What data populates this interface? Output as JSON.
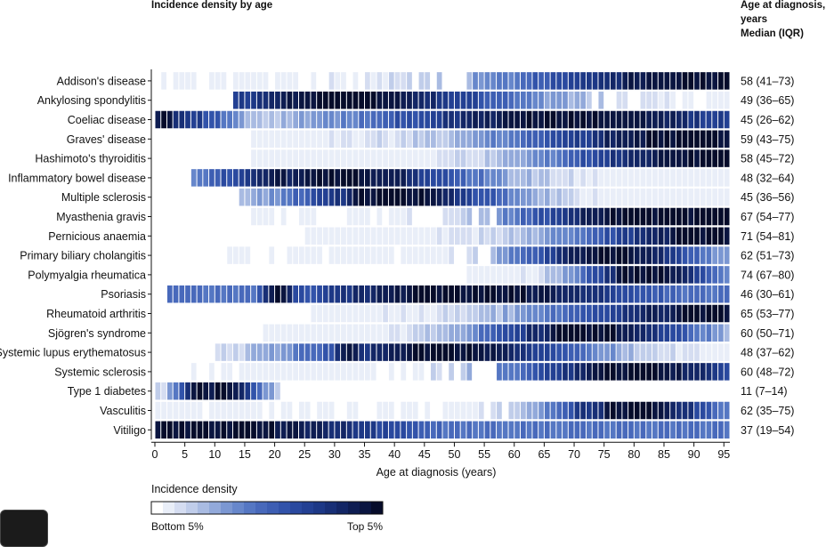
{
  "header": {
    "title": "Incidence density by age",
    "right_title_lines": [
      "Age at diagnosis,",
      "years",
      "Median (IQR)"
    ]
  },
  "legend": {
    "title": "Incidence density",
    "low_label": "Bottom 5%",
    "high_label": "Top 5%",
    "levels": 20
  },
  "colors": {
    "scale": [
      "#ffffff",
      "#e9eef8",
      "#d5ddf1",
      "#c0cdea",
      "#a9bbe2",
      "#92a9da",
      "#7b97d2",
      "#6787cb",
      "#5577c3",
      "#4869bb",
      "#3d5eb3",
      "#3253aa",
      "#2a499f",
      "#234093",
      "#1d3886",
      "#182f76",
      "#132665",
      "#0e1d52",
      "#0a1540",
      "#060c2a"
    ]
  },
  "chart_data": {
    "type": "heatmap",
    "title": "Incidence density by age",
    "xlabel": "Age at diagnosis (years)",
    "x_ticks": [
      0,
      5,
      10,
      15,
      20,
      25,
      30,
      35,
      40,
      45,
      50,
      55,
      60,
      65,
      70,
      75,
      80,
      85,
      90,
      95
    ],
    "x_range": [
      0,
      96
    ],
    "color_scale_levels": 20,
    "rows": [
      {
        "name": "Addison's disease",
        "median_iqr": "58 (41–73)",
        "shape": "rise",
        "start": 0,
        "peak": 90,
        "width": 24,
        "dark": 89,
        "dense": 0
      },
      {
        "name": "Ankylosing spondylitis",
        "median_iqr": "49 (36–65)",
        "shape": "bell",
        "start": 13,
        "peak": 32,
        "width": 22,
        "dark": 30,
        "dense": 0
      },
      {
        "name": "Coeliac disease",
        "median_iqr": "45 (26–62)",
        "shape": "bimodal",
        "start": 0,
        "peak": 70,
        "width": 28,
        "dark": 1,
        "dense": 1
      },
      {
        "name": "Graves' disease",
        "median_iqr": "59 (43–75)",
        "shape": "rise",
        "start": 16,
        "peak": 90,
        "width": 24,
        "dark": 88,
        "dense": 1
      },
      {
        "name": "Hashimoto's thyroiditis",
        "median_iqr": "58 (45–72)",
        "shape": "rise",
        "start": 16,
        "peak": 92,
        "width": 20,
        "dark": 89,
        "dense": 1
      },
      {
        "name": "Inflammatory bowel disease",
        "median_iqr": "48 (32–64)",
        "shape": "bimodal",
        "start": 6,
        "peak": 30,
        "width": 18,
        "dark": 20,
        "dense": 1
      },
      {
        "name": "Multiple sclerosis",
        "median_iqr": "45 (36–56)",
        "shape": "bell",
        "start": 14,
        "peak": 40,
        "width": 14,
        "dark": 34,
        "dense": 1
      },
      {
        "name": "Myasthenia gravis",
        "median_iqr": "67 (54–77)",
        "shape": "rise",
        "start": 16,
        "peak": 79,
        "width": 15,
        "dark": 76,
        "dense": 0
      },
      {
        "name": "Pernicious anaemia",
        "median_iqr": "71 (54–81)",
        "shape": "rise",
        "start": 25,
        "peak": 93,
        "width": 18,
        "dark": 87,
        "dense": 1
      },
      {
        "name": "Primary biliary cholangitis",
        "median_iqr": "62 (51–73)",
        "shape": "bell",
        "start": 12,
        "peak": 76,
        "width": 12,
        "dark": 73,
        "dense": 0
      },
      {
        "name": "Polymyalgia rheumatica",
        "median_iqr": "74 (67–80)",
        "shape": "bell",
        "start": 52,
        "peak": 82,
        "width": 9,
        "dark": 78,
        "dense": 1
      },
      {
        "name": "Psoriasis",
        "median_iqr": "46 (30–61)",
        "shape": "wide",
        "start": 2,
        "peak": 52,
        "width": 28,
        "dark": 20,
        "dense": 1
      },
      {
        "name": "Rheumatoid arthritis",
        "median_iqr": "65 (53–77)",
        "shape": "rise",
        "start": 26,
        "peak": 95,
        "width": 22,
        "dark": 88,
        "dense": 1
      },
      {
        "name": "Sjögren's syndrome",
        "median_iqr": "60 (50–71)",
        "shape": "bell",
        "start": 18,
        "peak": 72,
        "width": 14,
        "dark": 67,
        "dense": 1
      },
      {
        "name": "Systemic lupus erythematosus",
        "median_iqr": "48 (37–62)",
        "shape": "bell",
        "start": 10,
        "peak": 48,
        "width": 18,
        "dark": 32,
        "dense": 1
      },
      {
        "name": "Systemic sclerosis",
        "median_iqr": "60 (48–72)",
        "shape": "bell",
        "start": 6,
        "peak": 80,
        "width": 16,
        "dark": 83,
        "dense": 0
      },
      {
        "name": "Type 1 diabetes",
        "median_iqr": "11 (7–14)",
        "shape": "bell",
        "start": 0,
        "peak": 11,
        "width": 5,
        "dark": 7,
        "dense": 1,
        "end": 20
      },
      {
        "name": "Vasculitis",
        "median_iqr": "62 (35–75)",
        "shape": "bimodal",
        "start": 0,
        "peak": 80,
        "width": 11,
        "dark": 76,
        "dense": 0
      },
      {
        "name": "Vitiligo",
        "median_iqr": "37 (19–54)",
        "shape": "wide",
        "start": 0,
        "peak": 10,
        "width": 30,
        "dark": 4,
        "dense": 1
      }
    ]
  }
}
